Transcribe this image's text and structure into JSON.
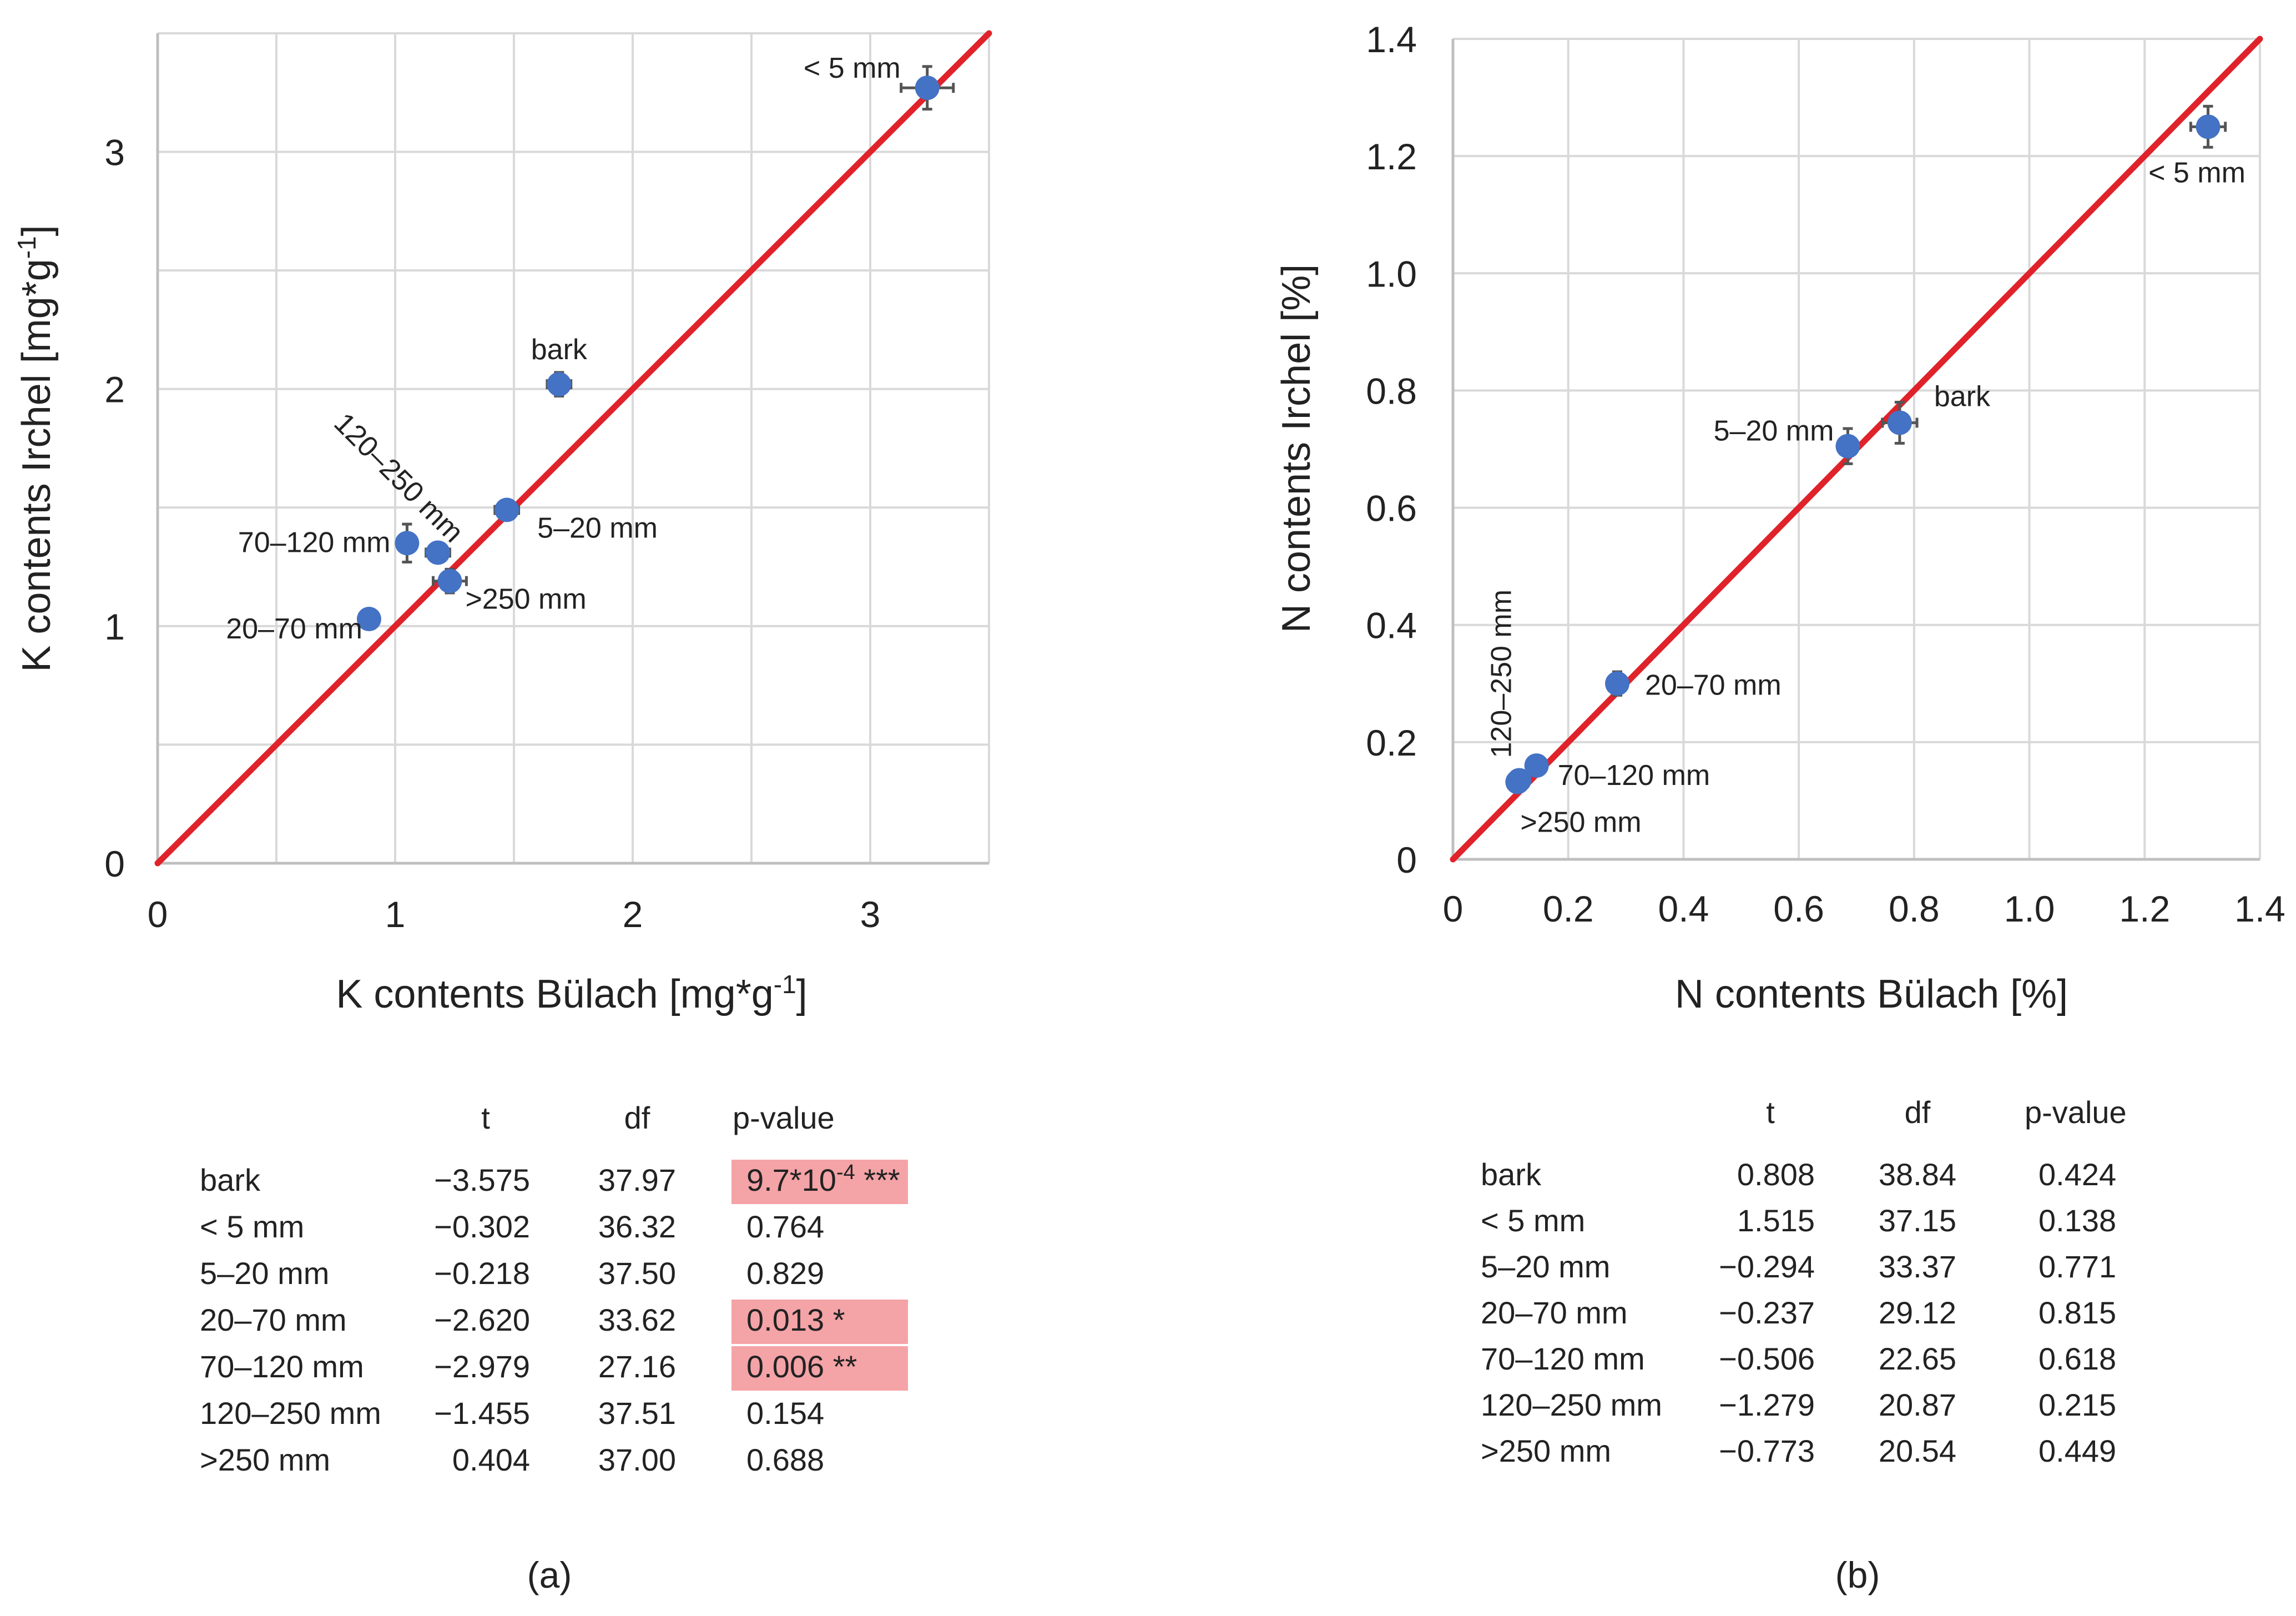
{
  "chart_data": [
    {
      "type": "scatter",
      "panel_label": "(a)",
      "xlabel": "K contents Bülach [mg*g",
      "ylabel": "K contents Irchel [mg*g",
      "unit_sup": "-1",
      "unit_close": "]",
      "xlim": [
        0,
        3.5
      ],
      "ylim": [
        0,
        3.5
      ],
      "xticks": [
        0,
        1,
        2,
        3
      ],
      "yticks": [
        0,
        1,
        2,
        3
      ],
      "grid_step": 0.5,
      "identity_line": [
        [
          0,
          0
        ],
        [
          3.5,
          3.5
        ]
      ],
      "points": [
        {
          "label": "bark",
          "x": 1.69,
          "y": 2.02,
          "xerr": 0.05,
          "yerr": 0.05
        },
        {
          "label": "< 5 mm",
          "x": 3.24,
          "y": 3.27,
          "xerr": 0.11,
          "yerr": 0.09
        },
        {
          "label": "5–20 mm",
          "x": 1.47,
          "y": 1.49,
          "xerr": 0.05,
          "yerr": 0.03
        },
        {
          "label": "20–70 mm",
          "x": 0.89,
          "y": 1.03,
          "xerr": 0.02,
          "yerr": 0.02
        },
        {
          "label": "70–120 mm",
          "x": 1.05,
          "y": 1.35,
          "xerr": 0.03,
          "yerr": 0.08
        },
        {
          "label": "120–250 mm",
          "x": 1.18,
          "y": 1.31,
          "xerr": 0.05,
          "yerr": 0.04
        },
        {
          "label": ">250 mm",
          "x": 1.23,
          "y": 1.19,
          "xerr": 0.07,
          "yerr": 0.05
        }
      ],
      "table": {
        "headers": [
          "t",
          "df",
          "p-value"
        ],
        "rows": [
          {
            "name": "bark",
            "t": "−3.575",
            "df": "37.97",
            "p": "9.7*10",
            "p_sup": "-4",
            "p_sig": " ***",
            "highlight": true
          },
          {
            "name": "< 5 mm",
            "t": "−0.302",
            "df": "36.32",
            "p": "0.764",
            "p_sup": "",
            "p_sig": "",
            "highlight": false
          },
          {
            "name": "5–20 mm",
            "t": "−0.218",
            "df": "37.50",
            "p": "0.829",
            "p_sup": "",
            "p_sig": "",
            "highlight": false
          },
          {
            "name": "20–70 mm",
            "t": "−2.620",
            "df": "33.62",
            "p": "0.013 *",
            "p_sup": "",
            "p_sig": "",
            "highlight": true
          },
          {
            "name": "70–120 mm",
            "t": "−2.979",
            "df": "27.16",
            "p": "0.006 **",
            "p_sup": "",
            "p_sig": "",
            "highlight": true
          },
          {
            "name": "120–250 mm",
            "t": "−1.455",
            "df": "37.51",
            "p": "0.154",
            "p_sup": "",
            "p_sig": "",
            "highlight": false
          },
          {
            "name": ">250 mm",
            "t": "0.404",
            "df": "37.00",
            "p": "0.688",
            "p_sup": "",
            "p_sig": "",
            "highlight": false
          }
        ]
      }
    },
    {
      "type": "scatter",
      "panel_label": "(b)",
      "xlabel": "N contents Bülach [%]",
      "ylabel": "N contents Irchel [%]",
      "xlim": [
        0,
        1.4
      ],
      "ylim": [
        0,
        1.4
      ],
      "xticks": [
        "0",
        "0.2",
        "0.4",
        "0.6",
        "0.8",
        "1.0",
        "1.2",
        "1.4"
      ],
      "yticks": [
        "0",
        "0.2",
        "0.4",
        "0.6",
        "0.8",
        "1.0",
        "1.2",
        "1.4"
      ],
      "grid_step": 0.2,
      "identity_line": [
        [
          0,
          0
        ],
        [
          1.4,
          1.4
        ]
      ],
      "points": [
        {
          "label": "bark",
          "x": 0.775,
          "y": 0.745,
          "xerr": 0.03,
          "yerr": 0.035
        },
        {
          "label": "< 5 mm",
          "x": 1.31,
          "y": 1.25,
          "xerr": 0.03,
          "yerr": 0.035
        },
        {
          "label": "5–20 mm",
          "x": 0.685,
          "y": 0.705,
          "xerr": 0.012,
          "yerr": 0.03
        },
        {
          "label": "20–70 mm",
          "x": 0.285,
          "y": 0.3,
          "xerr": 0.008,
          "yerr": 0.02
        },
        {
          "label": "70–120 mm",
          "x": 0.145,
          "y": 0.16,
          "xerr": 0.008,
          "yerr": 0.012
        },
        {
          "label": "120–250 mm",
          "x": 0.115,
          "y": 0.135,
          "xerr": 0.006,
          "yerr": 0.008
        },
        {
          "label": ">250 mm",
          "x": 0.112,
          "y": 0.132,
          "xerr": 0.005,
          "yerr": 0.006
        }
      ],
      "table": {
        "headers": [
          "t",
          "df",
          "p-value"
        ],
        "rows": [
          {
            "name": "bark",
            "t": "0.808",
            "df": "38.84",
            "p": "0.424",
            "highlight": false
          },
          {
            "name": "< 5 mm",
            "t": "1.515",
            "df": "37.15",
            "p": "0.138",
            "highlight": false
          },
          {
            "name": "5–20 mm",
            "t": "−0.294",
            "df": "33.37",
            "p": "0.771",
            "highlight": false
          },
          {
            "name": "20–70 mm",
            "t": "−0.237",
            "df": "29.12",
            "p": "0.815",
            "highlight": false
          },
          {
            "name": "70–120 mm",
            "t": "−0.506",
            "df": "22.65",
            "p": "0.618",
            "highlight": false
          },
          {
            "name": "120–250 mm",
            "t": "−1.279",
            "df": "20.87",
            "p": "0.215",
            "highlight": false
          },
          {
            "name": ">250 mm",
            "t": "−0.773",
            "df": "20.54",
            "p": "0.449",
            "highlight": false
          }
        ]
      }
    }
  ],
  "colors": {
    "point": "#4472C4",
    "line": "#E0222A",
    "grid": "#D9D9D9",
    "errorbar": "#555555",
    "highlight": "#F4A3A6"
  }
}
